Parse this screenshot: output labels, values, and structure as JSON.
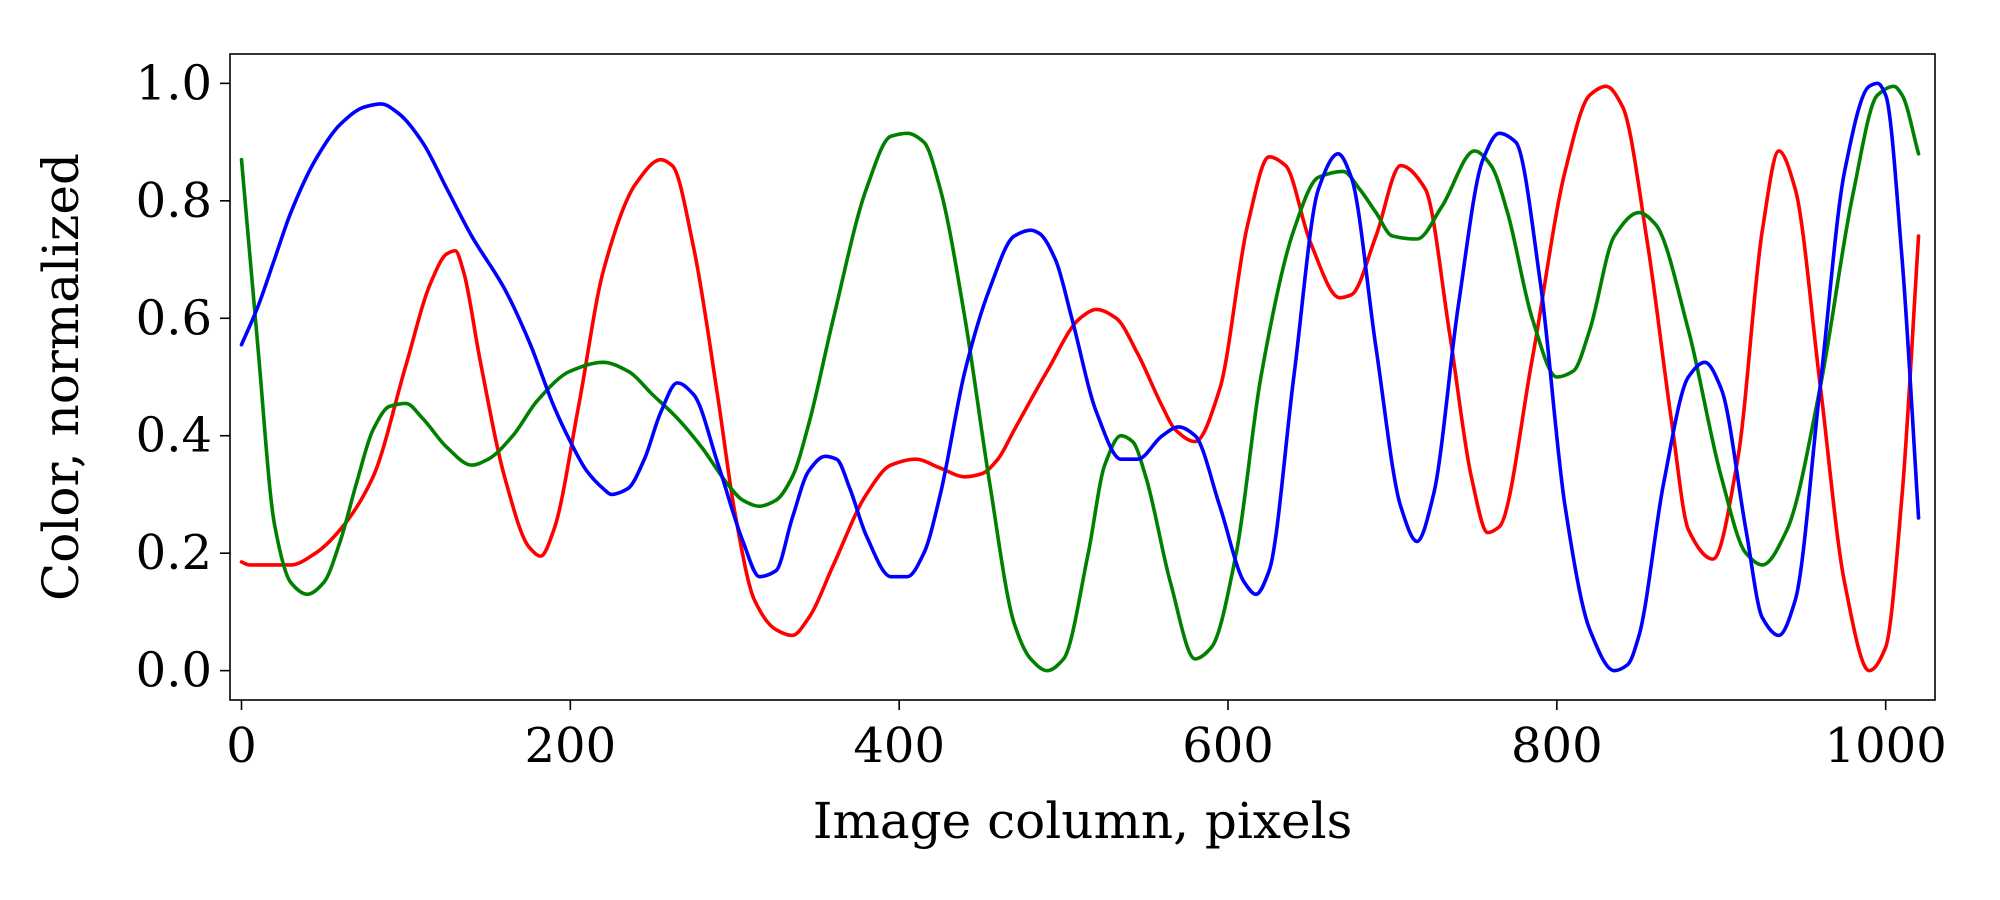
{
  "chart_data": {
    "type": "line",
    "title": "",
    "xlabel": "Image column, pixels",
    "ylabel": "Color, normalized",
    "xlim": [
      -7,
      1030
    ],
    "ylim": [
      -0.05,
      1.05
    ],
    "xticks": [
      0,
      200,
      400,
      600,
      800,
      1000
    ],
    "yticks": [
      0.0,
      0.2,
      0.4,
      0.6,
      0.8,
      1.0
    ],
    "xtick_labels": [
      "0",
      "200",
      "400",
      "600",
      "800",
      "1000"
    ],
    "ytick_labels": [
      "0.0",
      "0.2",
      "0.4",
      "0.6",
      "0.8",
      "1.0"
    ],
    "grid": false,
    "legend": "none",
    "series": [
      {
        "color": "#ff0000",
        "x": [
          0,
          5,
          30,
          45,
          60,
          80,
          100,
          115,
          125,
          130,
          135,
          145,
          160,
          175,
          182,
          190,
          205,
          220,
          240,
          255,
          262,
          275,
          290,
          300,
          312,
          325,
          335,
          345,
          360,
          380,
          395,
          410,
          425,
          440,
          450,
          460,
          470,
          490,
          510,
          520,
          532,
          545,
          560,
          568,
          580,
          595,
          612,
          625,
          635,
          650,
          668,
          675,
          690,
          705,
          720,
          735,
          748,
          758,
          765,
          785,
          805,
          820,
          830,
          840,
          855,
          870,
          880,
          895,
          910,
          925,
          935,
          945,
          960,
          975,
          990,
          1000,
          1010,
          1020
        ],
        "y": [
          0.185,
          0.18,
          0.18,
          0.2,
          0.24,
          0.33,
          0.52,
          0.66,
          0.71,
          0.715,
          0.68,
          0.53,
          0.33,
          0.21,
          0.195,
          0.24,
          0.45,
          0.68,
          0.83,
          0.87,
          0.86,
          0.72,
          0.46,
          0.27,
          0.12,
          0.07,
          0.06,
          0.09,
          0.18,
          0.3,
          0.35,
          0.36,
          0.345,
          0.33,
          0.335,
          0.36,
          0.41,
          0.51,
          0.6,
          0.615,
          0.6,
          0.54,
          0.45,
          0.41,
          0.39,
          0.48,
          0.76,
          0.875,
          0.86,
          0.73,
          0.635,
          0.64,
          0.74,
          0.86,
          0.82,
          0.57,
          0.33,
          0.235,
          0.245,
          0.53,
          0.85,
          0.98,
          0.995,
          0.96,
          0.73,
          0.42,
          0.24,
          0.19,
          0.36,
          0.75,
          0.885,
          0.82,
          0.49,
          0.15,
          0.0,
          0.04,
          0.3,
          0.74
        ]
      },
      {
        "color": "#008000",
        "x": [
          0,
          10,
          20,
          30,
          40,
          50,
          60,
          70,
          80,
          90,
          100,
          110,
          125,
          140,
          150,
          165,
          180,
          200,
          220,
          235,
          250,
          265,
          280,
          295,
          305,
          315,
          325,
          335,
          345,
          360,
          380,
          395,
          405,
          415,
          425,
          440,
          455,
          470,
          480,
          490,
          500,
          515,
          525,
          535,
          542,
          550,
          565,
          580,
          590,
          605,
          620,
          640,
          655,
          670,
          680,
          690,
          700,
          715,
          730,
          750,
          760,
          770,
          785,
          800,
          810,
          820,
          835,
          850,
          860,
          880,
          900,
          915,
          925,
          940,
          960,
          980,
          995,
          1005,
          1010,
          1020
        ],
        "y": [
          0.87,
          0.55,
          0.25,
          0.15,
          0.13,
          0.15,
          0.22,
          0.32,
          0.41,
          0.45,
          0.455,
          0.43,
          0.38,
          0.35,
          0.36,
          0.4,
          0.46,
          0.51,
          0.525,
          0.51,
          0.47,
          0.43,
          0.38,
          0.32,
          0.29,
          0.28,
          0.29,
          0.33,
          0.42,
          0.6,
          0.82,
          0.91,
          0.915,
          0.9,
          0.82,
          0.6,
          0.32,
          0.08,
          0.02,
          0.0,
          0.02,
          0.2,
          0.35,
          0.4,
          0.39,
          0.33,
          0.15,
          0.02,
          0.04,
          0.2,
          0.5,
          0.75,
          0.84,
          0.85,
          0.82,
          0.78,
          0.74,
          0.735,
          0.79,
          0.885,
          0.86,
          0.78,
          0.6,
          0.5,
          0.51,
          0.58,
          0.74,
          0.78,
          0.76,
          0.58,
          0.33,
          0.2,
          0.18,
          0.24,
          0.48,
          0.81,
          0.98,
          0.995,
          0.98,
          0.88
        ]
      },
      {
        "color": "#0000ff",
        "x": [
          0,
          10,
          20,
          30,
          45,
          60,
          75,
          85,
          95,
          110,
          125,
          140,
          160,
          175,
          190,
          200,
          210,
          220,
          225,
          235,
          245,
          255,
          265,
          275,
          290,
          305,
          315,
          325,
          335,
          345,
          355,
          362,
          370,
          380,
          395,
          405,
          415,
          425,
          440,
          455,
          470,
          480,
          485,
          495,
          505,
          520,
          535,
          545,
          560,
          570,
          580,
          595,
          610,
          617,
          625,
          640,
          655,
          667,
          675,
          690,
          705,
          715,
          725,
          740,
          755,
          765,
          775,
          790,
          805,
          820,
          835,
          843,
          850,
          865,
          880,
          890,
          900,
          915,
          925,
          935,
          945,
          960,
          975,
          990,
          995,
          1000,
          1010,
          1020
        ],
        "y": [
          0.555,
          0.62,
          0.7,
          0.78,
          0.87,
          0.93,
          0.96,
          0.965,
          0.95,
          0.9,
          0.82,
          0.74,
          0.65,
          0.56,
          0.45,
          0.39,
          0.34,
          0.31,
          0.3,
          0.31,
          0.36,
          0.44,
          0.49,
          0.47,
          0.35,
          0.22,
          0.16,
          0.17,
          0.26,
          0.34,
          0.365,
          0.36,
          0.31,
          0.23,
          0.16,
          0.16,
          0.2,
          0.3,
          0.51,
          0.65,
          0.74,
          0.75,
          0.745,
          0.7,
          0.6,
          0.44,
          0.36,
          0.36,
          0.4,
          0.415,
          0.4,
          0.28,
          0.15,
          0.13,
          0.17,
          0.5,
          0.82,
          0.88,
          0.84,
          0.55,
          0.28,
          0.22,
          0.3,
          0.62,
          0.87,
          0.915,
          0.9,
          0.66,
          0.28,
          0.07,
          0.0,
          0.01,
          0.06,
          0.32,
          0.5,
          0.525,
          0.48,
          0.24,
          0.09,
          0.06,
          0.12,
          0.48,
          0.85,
          0.995,
          1.0,
          0.98,
          0.7,
          0.26
        ]
      }
    ]
  }
}
